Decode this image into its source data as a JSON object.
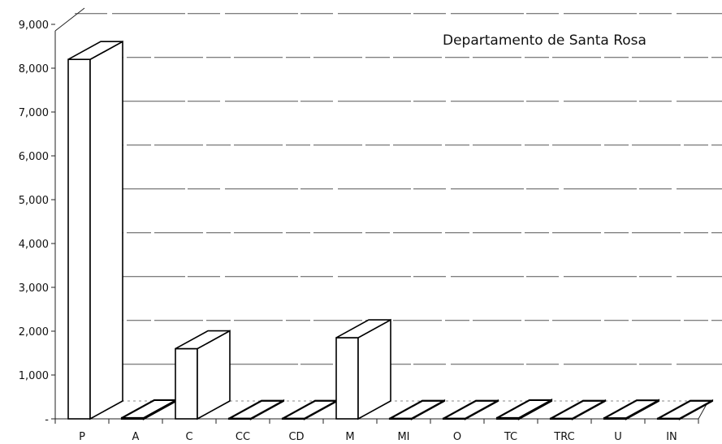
{
  "chart_data": {
    "type": "bar",
    "title": "Departamento de Santa Rosa",
    "categories": [
      "P",
      "A",
      "C",
      "CC",
      "CD",
      "M",
      "MI",
      "O",
      "TC",
      "TRC",
      "U",
      "IN"
    ],
    "values": [
      8200,
      20,
      1600,
      5,
      5,
      1850,
      5,
      5,
      20,
      5,
      15,
      5
    ],
    "ylim": [
      0,
      9000
    ],
    "yticks": [
      {
        "value": 0,
        "label": "-"
      },
      {
        "value": 1000,
        "label": "1,000"
      },
      {
        "value": 2000,
        "label": "2,000"
      },
      {
        "value": 3000,
        "label": "3,000"
      },
      {
        "value": 4000,
        "label": "4,000"
      },
      {
        "value": 5000,
        "label": "5,000"
      },
      {
        "value": 6000,
        "label": "6,000"
      },
      {
        "value": 7000,
        "label": "7,000"
      },
      {
        "value": 8000,
        "label": "8,000"
      },
      {
        "value": 9000,
        "label": "9,000"
      }
    ],
    "xlabel": "",
    "ylabel": "",
    "grid": true,
    "colors": {
      "bar_fill": "#ffffff",
      "bar_stroke": "#000000",
      "grid": "#555555"
    }
  }
}
